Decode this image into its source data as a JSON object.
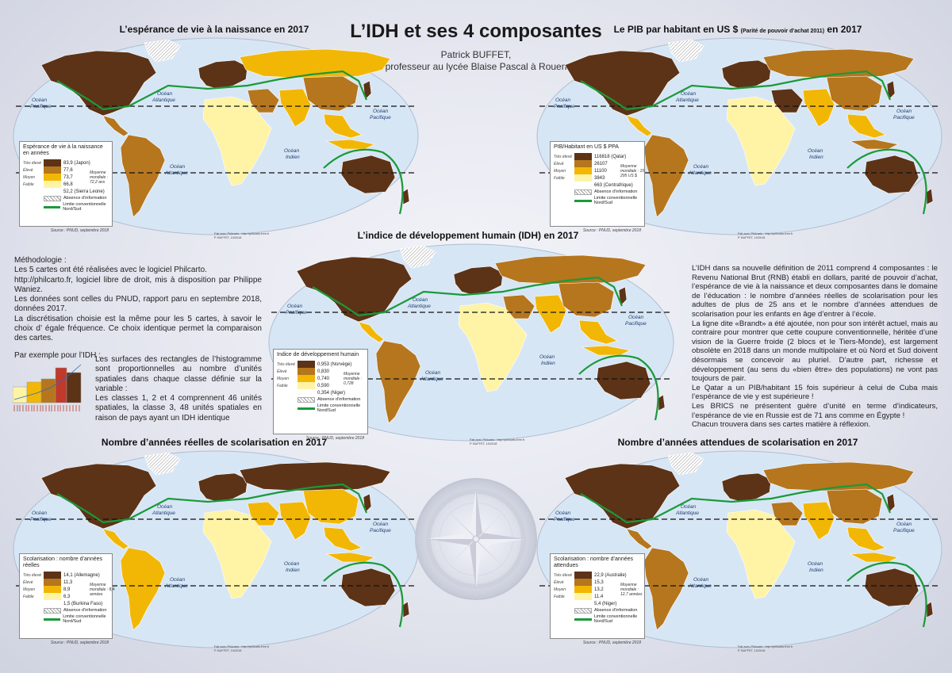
{
  "title": "L’IDH et ses 4 composantes",
  "author": [
    "Patrick BUFFET,",
    "professeur au lycée Blaise Pascal  à Rouen"
  ],
  "map_labels": {
    "ocean": "Océan",
    "pacifique": "Pacifique",
    "atlantique": "Atlantique",
    "indien": "Indien"
  },
  "credit": [
    "Fait avec Philcarto : http://philcarto.free.fr",
    "P. BUFFET, 10/2018"
  ],
  "source": "Source : PNUD, septembre 2018",
  "common_legend": {
    "absence": "Absence d’information",
    "line": "Limite conventionnelle Nord/Sud",
    "classes": [
      "Très élevé",
      "Élevé",
      "Moyen",
      "Faible"
    ]
  },
  "colors": {
    "very_high": "#5c3317",
    "high": "#b5761e",
    "medium": "#f2b705",
    "low": "#fff3a6",
    "ocean": "#d7e6f5",
    "brandt": "#1a9a3a"
  },
  "maps": {
    "life": {
      "title": "L’espérance de vie à la naissance en 2017",
      "legend_title": "Espérance de vie à la naissance en années",
      "values": [
        "83,9 (Japon)",
        "77,6",
        "73,7",
        "66,8",
        "52,2 (Sierra Leone)"
      ],
      "mean": "Moyenne mondiale : 72,2 ans"
    },
    "gdp": {
      "title": "Le PIB par habitant en US $",
      "title_small": "(Parité de pouvoir d’achat 2011)",
      "title_end": "en 2017",
      "legend_title": "PIB/Habitant en US $ PPA",
      "values": [
        "116818 (Qatar)",
        "26107",
        "11100",
        "3843",
        "663 (Centrafrique)"
      ],
      "mean": "Moyenne mondiale : 15 295 US $"
    },
    "hdi": {
      "title": "L’indice de développement humain (IDH) en 2017",
      "legend_title": "Indice de développement humain",
      "values": [
        "0,953 (Norvège)",
        "0,830",
        "0,740",
        "0,590",
        "0,354 (Niger)"
      ],
      "mean": "Moyenne mondiale : 0,728"
    },
    "school_real": {
      "title": "Nombre d’années réelles de scolarisation en 2017",
      "legend_title": "Scolarisation : nombre d’années réelles",
      "values": [
        "14,1 (Allemagne)",
        "11,3",
        "8,9",
        "6,3",
        "1,5 (Burkina Faso)"
      ],
      "mean": "Moyenne mondiale : 8,4 années"
    },
    "school_exp": {
      "title": "Nombre d’années attendues de scolarisation en 2017",
      "legend_title": "Scolarisation : nombre d’années attendues",
      "values": [
        "22,9 (Australie)",
        "15,3",
        "13,2",
        "11,4",
        "5,4 (Niger)"
      ],
      "mean": "Moyenne mondiale : 12,7 années"
    }
  },
  "method": {
    "heading": "Méthodologie :",
    "paragraphs": [
      "Les 5 cartes ont été réalisées avec le logiciel Philcarto.",
      "http://philcarto.fr, logiciel libre de droit, mis à disposition par Philippe Waniez.",
      "Les données sont celles du PNUD, rapport paru en septembre 2018, données 2017.",
      "La discrétisation choisie est la même pour les 5 cartes, à savoir le choix d’ égale fréquence. Ce choix identique permet la comparaison des cartes."
    ],
    "example_heading": "Par exemple pour l’IDH :",
    "example_paragraphs": [
      "Les surfaces des rectangles de l’histogramme sont proportionnelles au nombre d’unités spatiales dans chaque classe définie sur la variable :",
      "Les classes 1, 2 et 4 comprennent 46 unités spatiales, la classe 3, 48 unités spatiales en raison de pays ayant un IDH identique"
    ]
  },
  "idh_text": [
    "L’IDH dans sa nouvelle définition de 2011 comprend 4 composantes : le Revenu National Brut (RNB) établi en dollars, parité de pouvoir d’achat, l’espérance de vie à la naissance et deux composantes dans le domaine de l’éducation : le nombre d’années réelles de scolarisation pour les adultes de plus de 25 ans et le nombre  d’années attendues de scolarisation pour les enfants en âge d’entrer à l’école.",
    "La ligne dite «Brandt» a été ajoutée, non pour son intérêt actuel, mais au contraire pour montrer que cette coupure conventionnelle, héritée d’une vision de la Guerre froide (2 blocs et le Tiers-Monde), est largement obsolète en 2018 dans un monde multipolaire et où Nord et Sud doivent désormais se concevoir au pluriel. D’autre part, richesse et développement (au sens du «bien être» des populations) ne vont pas toujours de pair.",
    "Le Qatar a un PIB/habitant 15 fois supérieur à celui de Cuba mais l’espérance de vie y est supérieure !",
    "Les BRICS ne présentent guère d’unité en terme d’indicateurs, l’espérance de vie en Russie est de 71 ans comme en Égypte !",
    "Chacun trouvera dans ses cartes matière à réflexion."
  ]
}
